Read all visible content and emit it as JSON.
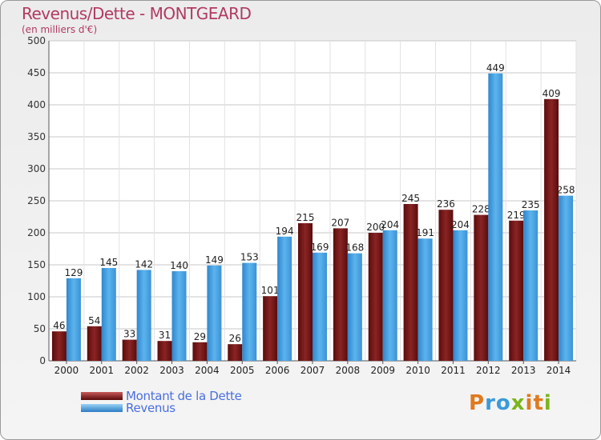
{
  "title": "Revenus/Dette - MONTGEARD",
  "subtitle": "(en milliers d'€)",
  "colors": {
    "dette": "#7a1a1a",
    "revenus": "#4aa8e8",
    "title": "#b13a60",
    "legend_text": "#4a6fe0"
  },
  "logo": {
    "letters": [
      "P",
      "r",
      "o",
      "x",
      "i",
      "t",
      "i"
    ],
    "colors": [
      "#e07a1e",
      "#3a9ad9",
      "#3a9ad9",
      "#7ab51d",
      "#e07a1e",
      "#e07a1e",
      "#7ab51d"
    ]
  },
  "chart_data": {
    "type": "bar",
    "title": "Revenus/Dette - MONTGEARD",
    "subtitle": "(en milliers d'€)",
    "categories": [
      "2000",
      "2001",
      "2002",
      "2003",
      "2004",
      "2005",
      "2006",
      "2007",
      "2008",
      "2009",
      "2010",
      "2011",
      "2012",
      "2013",
      "2014"
    ],
    "series": [
      {
        "name": "Montant de la Dette",
        "values": [
          46,
          54,
          33,
          31,
          29,
          26,
          101,
          215,
          207,
          200,
          245,
          236,
          228,
          219,
          409
        ]
      },
      {
        "name": "Revenus",
        "values": [
          129,
          145,
          142,
          140,
          149,
          153,
          194,
          169,
          168,
          204,
          191,
          204,
          449,
          235,
          258
        ]
      }
    ],
    "ylim": [
      0,
      500
    ],
    "yticks": [
      0,
      50,
      100,
      150,
      200,
      250,
      300,
      350,
      400,
      450,
      500
    ],
    "grid": true,
    "legend": "bottom-left"
  }
}
